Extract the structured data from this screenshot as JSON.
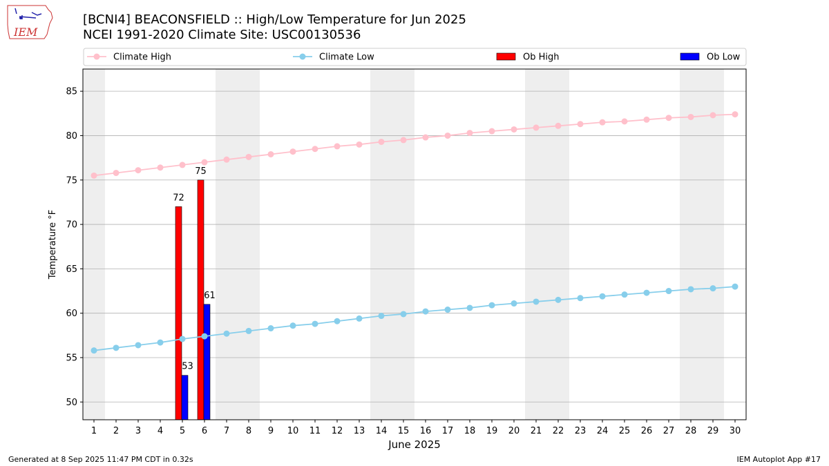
{
  "header": {
    "title_line1": "[BCNI4] BEACONSFIELD :: High/Low Temperature for Jun 2025",
    "title_line2": "NCEI 1991-2020 Climate Site: USC00130536",
    "logo_text": "IEM"
  },
  "footer": {
    "generated": "Generated at 8 Sep 2025 11:47 PM CDT in 0.32s",
    "app": "IEM Autoplot App #17"
  },
  "colors": {
    "climate_high": "#ffc0cb",
    "climate_low": "#87ceeb",
    "ob_high": "#ff0000",
    "ob_low": "#0000ff",
    "weekend_shade": "#eeeeee",
    "grid": "#b0b0b0"
  },
  "chart_data": {
    "type": "bar",
    "xlabel": "June 2025",
    "ylabel": "Temperature °F",
    "xlim": [
      0.5,
      30.5
    ],
    "ylim": [
      48,
      87.5
    ],
    "y_ticks": [
      50,
      55,
      60,
      65,
      70,
      75,
      80,
      85
    ],
    "x_ticks": [
      1,
      2,
      3,
      4,
      5,
      6,
      7,
      8,
      9,
      10,
      11,
      12,
      13,
      14,
      15,
      16,
      17,
      18,
      19,
      20,
      21,
      22,
      23,
      24,
      25,
      26,
      27,
      28,
      29,
      30
    ],
    "grid": "horizontal",
    "legend": {
      "placement": "top",
      "entries": [
        "Climate High",
        "Climate Low",
        "Ob High",
        "Ob Low"
      ]
    },
    "shaded_days": [
      1,
      7,
      8,
      14,
      15,
      21,
      22,
      28,
      29
    ],
    "climate_high": {
      "name": "Climate High",
      "days": [
        1,
        2,
        3,
        4,
        5,
        6,
        7,
        8,
        9,
        10,
        11,
        12,
        13,
        14,
        15,
        16,
        17,
        18,
        19,
        20,
        21,
        22,
        23,
        24,
        25,
        26,
        27,
        28,
        29,
        30
      ],
      "values": [
        75.5,
        75.8,
        76.1,
        76.4,
        76.7,
        77.0,
        77.3,
        77.6,
        77.9,
        78.2,
        78.5,
        78.8,
        79.0,
        79.3,
        79.5,
        79.8,
        80.0,
        80.3,
        80.5,
        80.7,
        80.9,
        81.1,
        81.3,
        81.5,
        81.6,
        81.8,
        82.0,
        82.1,
        82.3,
        82.4
      ]
    },
    "climate_low": {
      "name": "Climate Low",
      "days": [
        1,
        2,
        3,
        4,
        5,
        6,
        7,
        8,
        9,
        10,
        11,
        12,
        13,
        14,
        15,
        16,
        17,
        18,
        19,
        20,
        21,
        22,
        23,
        24,
        25,
        26,
        27,
        28,
        29,
        30
      ],
      "values": [
        55.8,
        56.1,
        56.4,
        56.7,
        57.1,
        57.4,
        57.7,
        58.0,
        58.3,
        58.6,
        58.8,
        59.1,
        59.4,
        59.7,
        59.9,
        60.2,
        60.4,
        60.6,
        60.9,
        61.1,
        61.3,
        61.5,
        61.7,
        61.9,
        62.1,
        62.3,
        62.5,
        62.7,
        62.8,
        63.0
      ]
    },
    "ob_high": {
      "name": "Ob High",
      "days": [
        5,
        6
      ],
      "values": [
        72,
        75
      ]
    },
    "ob_low": {
      "name": "Ob Low",
      "days": [
        5,
        6
      ],
      "values": [
        53,
        61
      ]
    }
  }
}
